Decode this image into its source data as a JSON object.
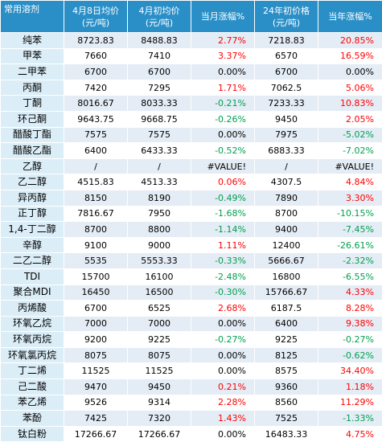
{
  "header": {
    "col0": "常用溶剂",
    "col1": "4月8日均价\n(元/吨)",
    "col2": "4月初均价\n(元/吨)",
    "col3": "当月涨幅%",
    "col4": "24年初价格\n(元/吨)",
    "col5": "当年涨幅%"
  },
  "colors": {
    "header_bg": "#2a8fc7",
    "up": "#ff0000",
    "down": "#00a050",
    "row_alt": "#dce6f2"
  },
  "rows": [
    {
      "name": "纯苯",
      "p_apr8": "8723.83",
      "p_apr1": "8488.83",
      "mtd": "2.77%",
      "p_24start": "7218.83",
      "ytd": "20.85%",
      "mtd_dir": "up",
      "ytd_dir": "up"
    },
    {
      "name": "甲苯",
      "p_apr8": "7660",
      "p_apr1": "7410",
      "mtd": "3.37%",
      "p_24start": "6570",
      "ytd": "16.59%",
      "mtd_dir": "up",
      "ytd_dir": "up"
    },
    {
      "name": "二甲苯",
      "p_apr8": "6700",
      "p_apr1": "6700",
      "mtd": "0.00%",
      "p_24start": "6700",
      "ytd": "0.00%",
      "mtd_dir": "flat",
      "ytd_dir": "flat"
    },
    {
      "name": "丙酮",
      "p_apr8": "7420",
      "p_apr1": "7295",
      "mtd": "1.71%",
      "p_24start": "7062.5",
      "ytd": "5.06%",
      "mtd_dir": "up",
      "ytd_dir": "up"
    },
    {
      "name": "丁酮",
      "p_apr8": "8016.67",
      "p_apr1": "8033.33",
      "mtd": "-0.21%",
      "p_24start": "7233.33",
      "ytd": "10.83%",
      "mtd_dir": "down",
      "ytd_dir": "up"
    },
    {
      "name": "环己酮",
      "p_apr8": "9643.75",
      "p_apr1": "9668.75",
      "mtd": "-0.26%",
      "p_24start": "9450",
      "ytd": "2.05%",
      "mtd_dir": "down",
      "ytd_dir": "up"
    },
    {
      "name": "醋酸丁酯",
      "p_apr8": "7575",
      "p_apr1": "7575",
      "mtd": "0.00%",
      "p_24start": "7975",
      "ytd": "-5.02%",
      "mtd_dir": "flat",
      "ytd_dir": "down"
    },
    {
      "name": "醋酸乙酯",
      "p_apr8": "6400",
      "p_apr1": "6433.33",
      "mtd": "-0.52%",
      "p_24start": "6883.33",
      "ytd": "-7.02%",
      "mtd_dir": "down",
      "ytd_dir": "down"
    },
    {
      "name": "乙醇",
      "p_apr8": "/",
      "p_apr1": "/",
      "mtd": "#VALUE!",
      "p_24start": "/",
      "ytd": "#VALUE!",
      "mtd_dir": "flat",
      "ytd_dir": "flat"
    },
    {
      "name": "乙二醇",
      "p_apr8": "4515.83",
      "p_apr1": "4513.33",
      "mtd": "0.06%",
      "p_24start": "4307.5",
      "ytd": "4.84%",
      "mtd_dir": "up",
      "ytd_dir": "up"
    },
    {
      "name": "异丙醇",
      "p_apr8": "8150",
      "p_apr1": "8190",
      "mtd": "-0.49%",
      "p_24start": "7890",
      "ytd": "3.30%",
      "mtd_dir": "down",
      "ytd_dir": "up"
    },
    {
      "name": "正丁醇",
      "p_apr8": "7816.67",
      "p_apr1": "7950",
      "mtd": "-1.68%",
      "p_24start": "8700",
      "ytd": "-10.15%",
      "mtd_dir": "down",
      "ytd_dir": "down"
    },
    {
      "name": "1,4-丁二醇",
      "p_apr8": "8700",
      "p_apr1": "8800",
      "mtd": "-1.14%",
      "p_24start": "9400",
      "ytd": "-7.45%",
      "mtd_dir": "down",
      "ytd_dir": "down"
    },
    {
      "name": "辛醇",
      "p_apr8": "9100",
      "p_apr1": "9000",
      "mtd": "1.11%",
      "p_24start": "12400",
      "ytd": "-26.61%",
      "mtd_dir": "up",
      "ytd_dir": "down"
    },
    {
      "name": "二乙二醇",
      "p_apr8": "5535",
      "p_apr1": "5553.33",
      "mtd": "-0.33%",
      "p_24start": "5666.67",
      "ytd": "-2.32%",
      "mtd_dir": "down",
      "ytd_dir": "down"
    },
    {
      "name": "TDI",
      "p_apr8": "15700",
      "p_apr1": "16100",
      "mtd": "-2.48%",
      "p_24start": "16800",
      "ytd": "-6.55%",
      "mtd_dir": "down",
      "ytd_dir": "down"
    },
    {
      "name": "聚合MDI",
      "p_apr8": "16450",
      "p_apr1": "16500",
      "mtd": "-0.30%",
      "p_24start": "15766.67",
      "ytd": "4.33%",
      "mtd_dir": "down",
      "ytd_dir": "up"
    },
    {
      "name": "丙烯酸",
      "p_apr8": "6700",
      "p_apr1": "6525",
      "mtd": "2.68%",
      "p_24start": "6187.5",
      "ytd": "8.28%",
      "mtd_dir": "up",
      "ytd_dir": "up"
    },
    {
      "name": "环氧乙烷",
      "p_apr8": "7000",
      "p_apr1": "7000",
      "mtd": "0.00%",
      "p_24start": "6400",
      "ytd": "9.38%",
      "mtd_dir": "flat",
      "ytd_dir": "up"
    },
    {
      "name": "环氧丙烷",
      "p_apr8": "9200",
      "p_apr1": "9225",
      "mtd": "-0.27%",
      "p_24start": "9225",
      "ytd": "-0.27%",
      "mtd_dir": "down",
      "ytd_dir": "down"
    },
    {
      "name": "环氧氯丙烷",
      "p_apr8": "8075",
      "p_apr1": "8075",
      "mtd": "0.00%",
      "p_24start": "8125",
      "ytd": "-0.62%",
      "mtd_dir": "flat",
      "ytd_dir": "down"
    },
    {
      "name": "丁二烯",
      "p_apr8": "11525",
      "p_apr1": "11525",
      "mtd": "0.00%",
      "p_24start": "8575",
      "ytd": "34.40%",
      "mtd_dir": "flat",
      "ytd_dir": "up"
    },
    {
      "name": "己二酸",
      "p_apr8": "9470",
      "p_apr1": "9450",
      "mtd": "0.21%",
      "p_24start": "9360",
      "ytd": "1.18%",
      "mtd_dir": "up",
      "ytd_dir": "up"
    },
    {
      "name": "苯乙烯",
      "p_apr8": "9526",
      "p_apr1": "9314",
      "mtd": "2.28%",
      "p_24start": "8560",
      "ytd": "11.29%",
      "mtd_dir": "up",
      "ytd_dir": "up"
    },
    {
      "name": "苯酚",
      "p_apr8": "7425",
      "p_apr1": "7320",
      "mtd": "1.43%",
      "p_24start": "7525",
      "ytd": "-1.33%",
      "mtd_dir": "up",
      "ytd_dir": "down"
    },
    {
      "name": "钛白粉",
      "p_apr8": "17266.67",
      "p_apr1": "17266.67",
      "mtd": "0.00%",
      "p_24start": "16483.33",
      "ytd": "4.75%",
      "mtd_dir": "flat",
      "ytd_dir": "up"
    }
  ]
}
